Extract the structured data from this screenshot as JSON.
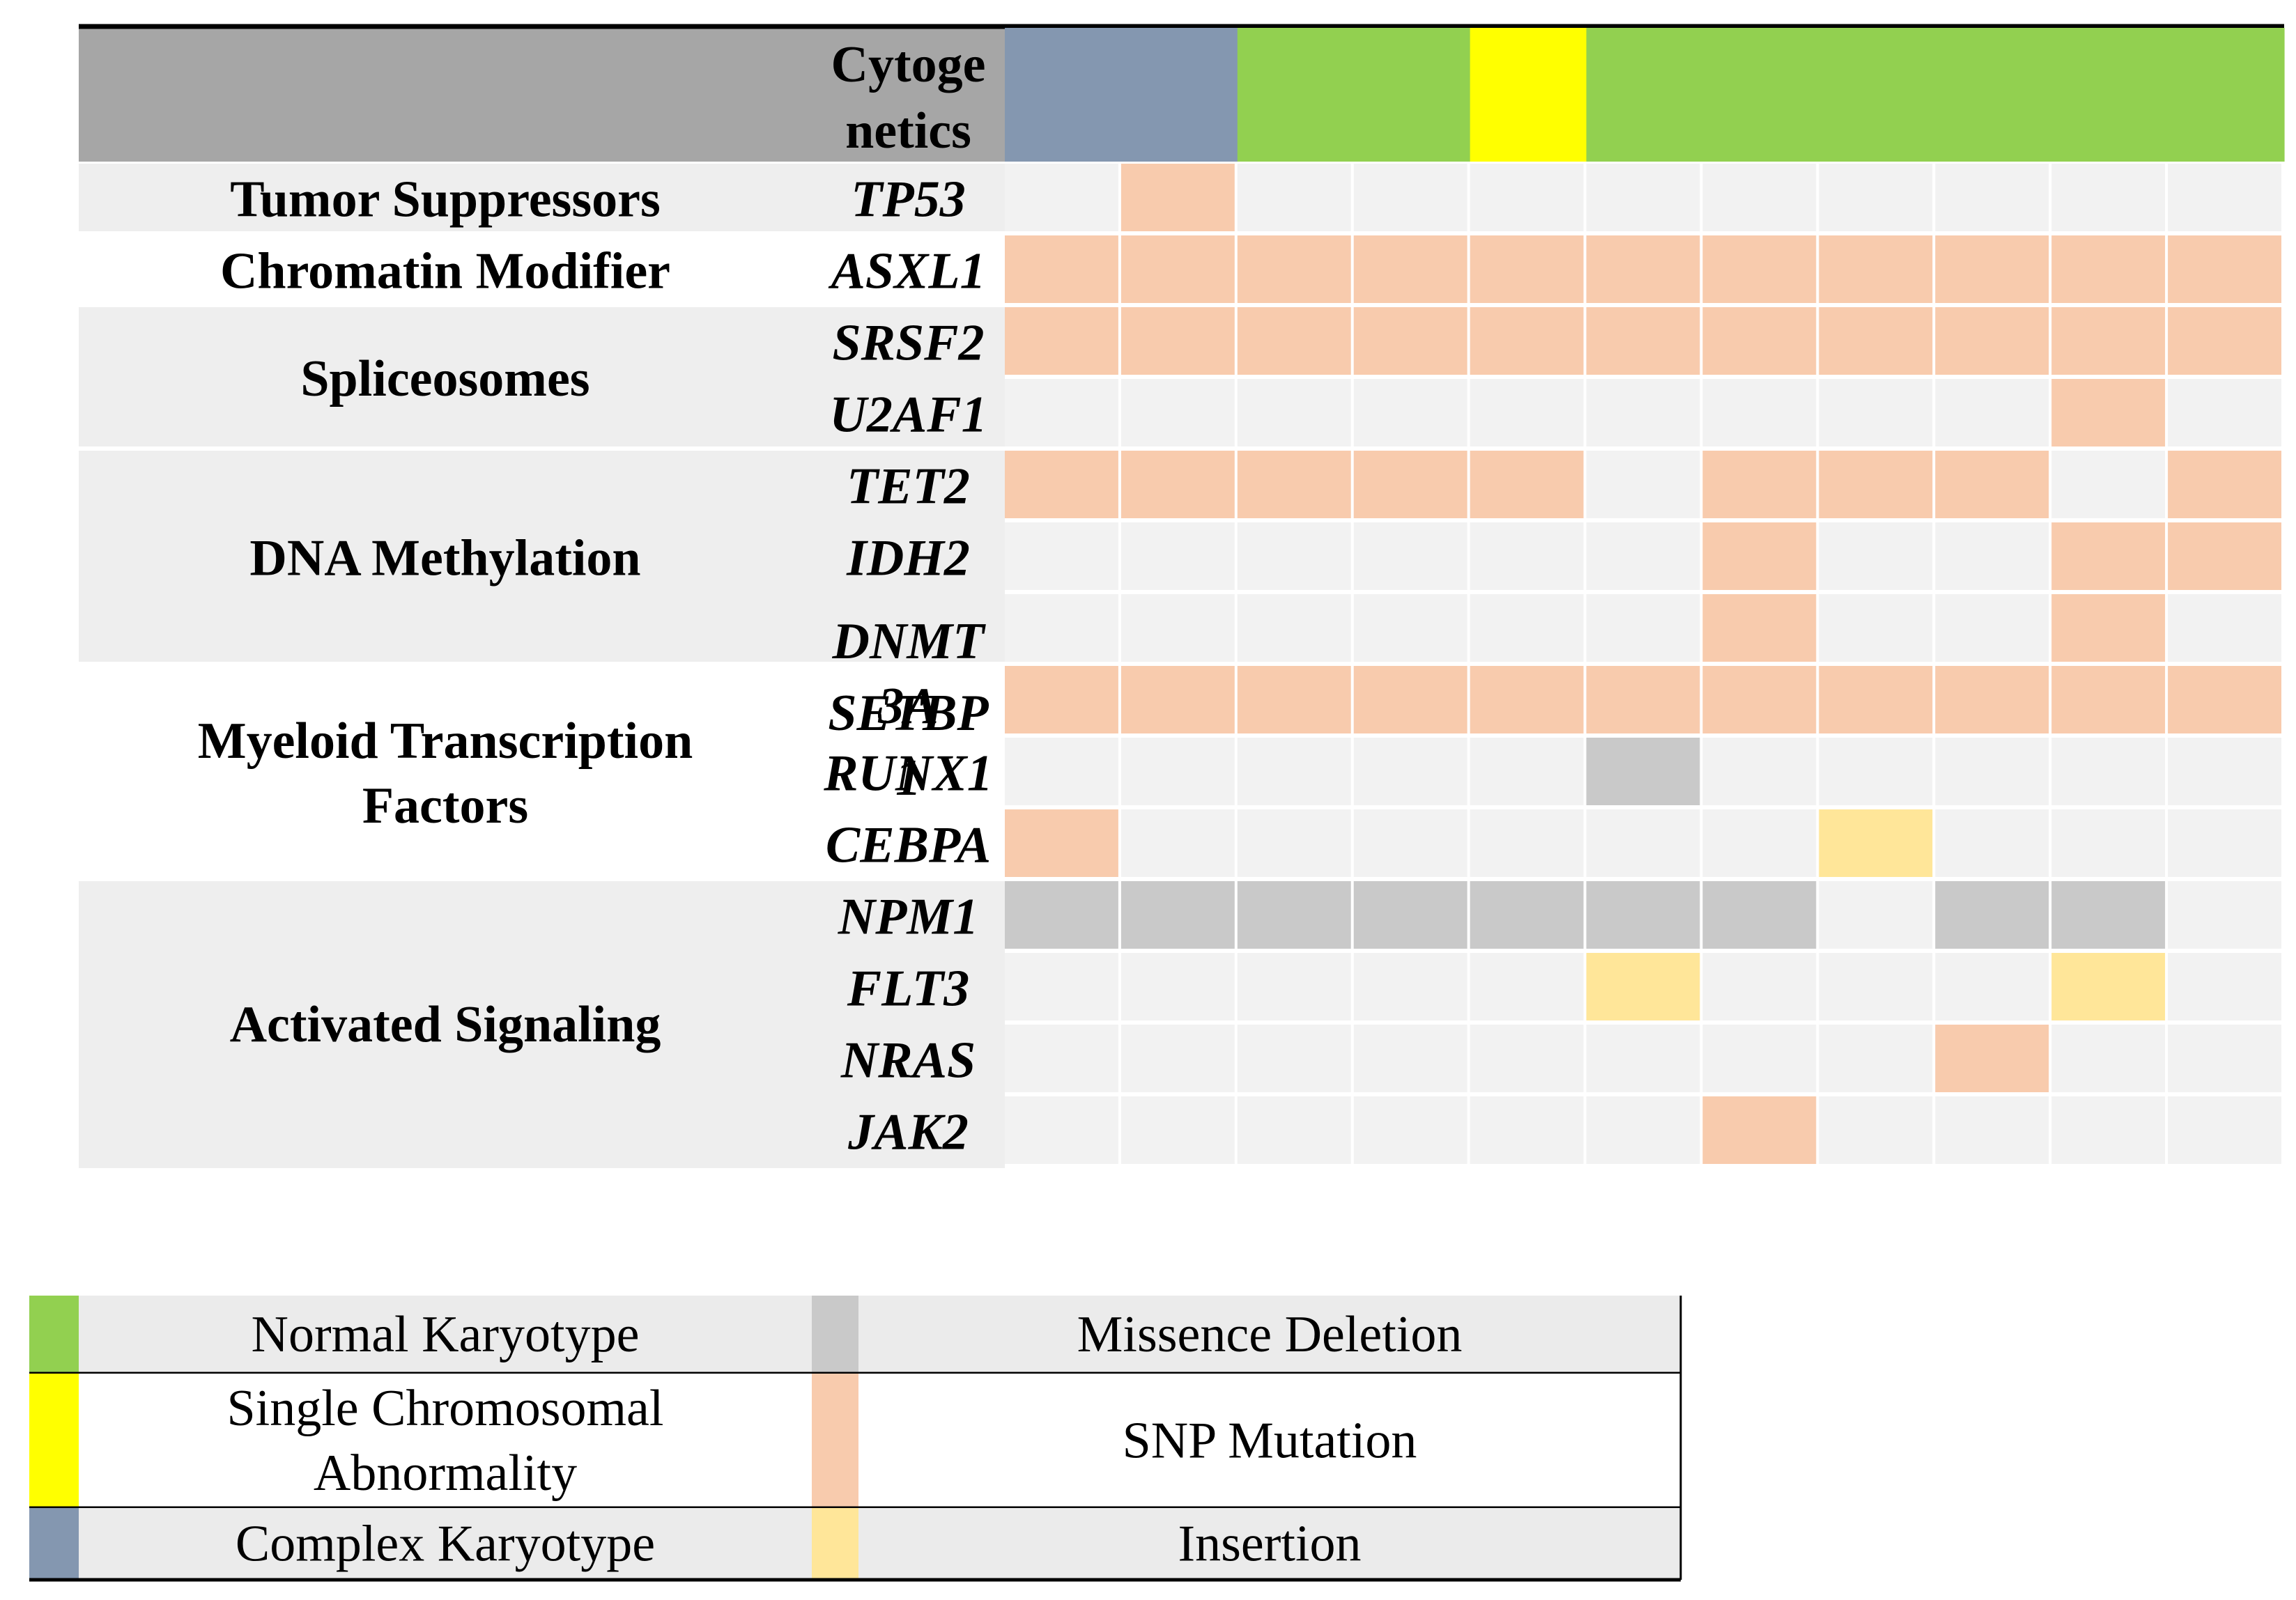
{
  "title": "",
  "header_label_lines": [
    "Cytoge",
    "netics"
  ],
  "chart_data": {
    "type": "table",
    "samples": 11,
    "colors": {
      "normal_karyotype": "#92d050",
      "single_chromosomal_abnormality": "#ffff00",
      "complex_karyotype": "#8497b0",
      "missence_deletion": "#c9c9c9",
      "snp_mutation": "#f8cbad",
      "insertion": "#ffe699",
      "header_gray": "#a6a6a6",
      "row_band": "#eeeeee",
      "cell_empty": "#f2f2f2"
    },
    "cytogenetics": [
      "complex_karyotype",
      "complex_karyotype",
      "normal_karyotype",
      "normal_karyotype",
      "single_chromosomal_abnormality",
      "normal_karyotype",
      "normal_karyotype",
      "normal_karyotype",
      "normal_karyotype",
      "normal_karyotype",
      "normal_karyotype"
    ],
    "categories": [
      {
        "name_lines": [
          "Tumor Suppressors"
        ],
        "band": true,
        "genes": [
          {
            "name_lines": [
              "TP53"
            ],
            "cells": [
              null,
              "snp_mutation",
              null,
              null,
              null,
              null,
              null,
              null,
              null,
              null,
              null
            ]
          }
        ]
      },
      {
        "name_lines": [
          "Chromatin Modifier"
        ],
        "band": false,
        "genes": [
          {
            "name_lines": [
              "ASXL1"
            ],
            "cells": [
              "snp_mutation",
              "snp_mutation",
              "snp_mutation",
              "snp_mutation",
              "snp_mutation",
              "snp_mutation",
              "snp_mutation",
              "snp_mutation",
              "snp_mutation",
              "snp_mutation",
              "snp_mutation"
            ]
          }
        ]
      },
      {
        "name_lines": [
          "Spliceosomes"
        ],
        "band": true,
        "genes": [
          {
            "name_lines": [
              "SRSF2"
            ],
            "cells": [
              "snp_mutation",
              "snp_mutation",
              "snp_mutation",
              "snp_mutation",
              "snp_mutation",
              "snp_mutation",
              "snp_mutation",
              "snp_mutation",
              "snp_mutation",
              "snp_mutation",
              "snp_mutation"
            ]
          },
          {
            "name_lines": [
              "U2AF1"
            ],
            "cells": [
              null,
              null,
              null,
              null,
              null,
              null,
              null,
              null,
              null,
              "snp_mutation",
              null
            ]
          }
        ]
      },
      {
        "name_lines": [
          "DNA Methylation"
        ],
        "band": true,
        "genes": [
          {
            "name_lines": [
              "TET2"
            ],
            "cells": [
              "snp_mutation",
              "snp_mutation",
              "snp_mutation",
              "snp_mutation",
              "snp_mutation",
              null,
              "snp_mutation",
              "snp_mutation",
              "snp_mutation",
              null,
              "snp_mutation"
            ]
          },
          {
            "name_lines": [
              "IDH2"
            ],
            "cells": [
              null,
              null,
              null,
              null,
              null,
              null,
              "snp_mutation",
              null,
              null,
              "snp_mutation",
              "snp_mutation"
            ]
          },
          {
            "name_lines": [
              "DNMT",
              "3A"
            ],
            "cells": [
              null,
              null,
              null,
              null,
              null,
              null,
              "snp_mutation",
              null,
              null,
              "snp_mutation",
              null
            ]
          }
        ]
      },
      {
        "name_lines": [
          "Myeloid Transcription",
          "Factors"
        ],
        "band": false,
        "genes": [
          {
            "name_lines": [
              "SETBP",
              "1"
            ],
            "cells": [
              "snp_mutation",
              "snp_mutation",
              "snp_mutation",
              "snp_mutation",
              "snp_mutation",
              "snp_mutation",
              "snp_mutation",
              "snp_mutation",
              "snp_mutation",
              "snp_mutation",
              "snp_mutation"
            ]
          },
          {
            "name_lines": [
              "RUNX1"
            ],
            "cells": [
              null,
              null,
              null,
              null,
              null,
              "missence_deletion",
              null,
              null,
              null,
              null,
              null
            ]
          },
          {
            "name_lines": [
              "CEBPA"
            ],
            "cells": [
              "snp_mutation",
              null,
              null,
              null,
              null,
              null,
              null,
              "insertion",
              null,
              null,
              null
            ]
          }
        ]
      },
      {
        "name_lines": [
          "Activated Signaling"
        ],
        "band": true,
        "genes": [
          {
            "name_lines": [
              "NPM1"
            ],
            "cells": [
              "missence_deletion",
              "missence_deletion",
              "missence_deletion",
              "missence_deletion",
              "missence_deletion",
              "missence_deletion",
              "missence_deletion",
              null,
              "missence_deletion",
              "missence_deletion",
              null
            ]
          },
          {
            "name_lines": [
              "FLT3"
            ],
            "cells": [
              null,
              null,
              null,
              null,
              null,
              "insertion",
              null,
              null,
              null,
              "insertion",
              null
            ]
          },
          {
            "name_lines": [
              "NRAS"
            ],
            "cells": [
              null,
              null,
              null,
              null,
              null,
              null,
              null,
              null,
              "snp_mutation",
              null,
              null
            ]
          },
          {
            "name_lines": [
              "JAK2"
            ],
            "cells": [
              null,
              null,
              null,
              null,
              null,
              null,
              "snp_mutation",
              null,
              null,
              null,
              null
            ]
          }
        ]
      }
    ],
    "legend": {
      "left": [
        {
          "key": "normal_karyotype",
          "label_lines": [
            "Normal Karyotype"
          ]
        },
        {
          "key": "single_chromosomal_abnormality",
          "label_lines": [
            "Single Chromosomal",
            "Abnormality"
          ]
        },
        {
          "key": "complex_karyotype",
          "label_lines": [
            "Complex Karyotype"
          ]
        }
      ],
      "right": [
        {
          "key": "missence_deletion",
          "label_lines": [
            "Missence Deletion"
          ]
        },
        {
          "key": "snp_mutation",
          "label_lines": [
            "SNP Mutation"
          ]
        },
        {
          "key": "insertion",
          "label_lines": [
            "Insertion"
          ]
        }
      ]
    }
  }
}
